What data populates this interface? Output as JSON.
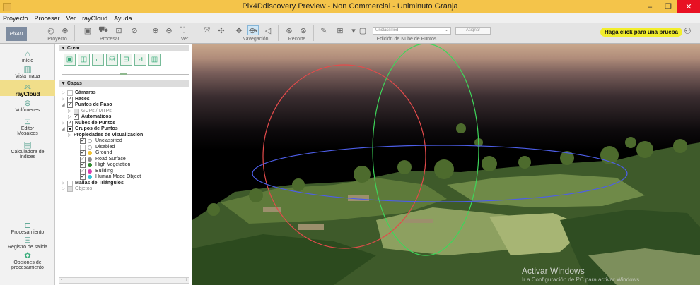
{
  "window": {
    "title": "Pix4Ddiscovery Preview - Non Commercial - Uniminuto Granja"
  },
  "menu": [
    "Proyecto",
    "Procesar",
    "Ver",
    "rayCloud",
    "Ayuda"
  ],
  "toolbar": {
    "logo_text": "Pix4D",
    "group_labels": {
      "proyecto": "Proyecto",
      "procesar": "Procesar",
      "ver": "Ver",
      "navegacion": "Navegación",
      "recorte": "Recorte",
      "edicion": "Edición de Nube de Puntos"
    },
    "class_dropdown": "Unclassified",
    "assign_label": "Asignar",
    "trial_button": "Haga click para una prueba"
  },
  "leftnav": [
    {
      "label": "Inicio",
      "icon": "home-icon"
    },
    {
      "label": "Vista mapa",
      "icon": "map-icon"
    },
    {
      "label": "rayCloud",
      "icon": "raycloud-icon",
      "active": true
    },
    {
      "label": "Volúmenes",
      "icon": "volume-icon"
    },
    {
      "label": "Editor Mosaicos",
      "icon": "mosaic-editor-icon"
    },
    {
      "label": "Calculadora de índices",
      "icon": "index-calculator-icon"
    },
    {
      "label": "Procesamiento",
      "icon": "processing-icon"
    },
    {
      "label": "Registro de salida",
      "icon": "output-log-icon"
    },
    {
      "label": "Opciones de procesamiento",
      "icon": "gear-icon"
    }
  ],
  "panel": {
    "crear_header": "Crear",
    "capas_header": "Capas",
    "layers": [
      {
        "label": "Cámaras",
        "checked": false,
        "bold": true,
        "level": 0,
        "expander": "▷"
      },
      {
        "label": "Haces",
        "checked": true,
        "bold": true,
        "level": 0,
        "expander": "▷"
      },
      {
        "label": "Puntos de Paso",
        "checked": true,
        "bold": true,
        "level": 0,
        "expander": "◢"
      },
      {
        "label": "GCPs / MTPs",
        "checked": false,
        "dim": true,
        "level": 1,
        "expander": "▷"
      },
      {
        "label": "Automaticos",
        "checked": true,
        "bold": true,
        "level": 1,
        "expander": "▷"
      },
      {
        "label": "Nubes de Puntos",
        "checked": true,
        "bold": true,
        "level": 0,
        "expander": "▷"
      },
      {
        "label": "Grupos de Puntos",
        "checked": "partial",
        "bold": true,
        "level": 0,
        "expander": "◢"
      },
      {
        "label": "Propiedades de Visualización",
        "bold": true,
        "level": 1,
        "expander": "▷",
        "no_checkbox": true
      },
      {
        "label": "Unclassified",
        "checked": true,
        "level": 2,
        "dot": "#ffffff"
      },
      {
        "label": "Disabled",
        "checked": false,
        "level": 2,
        "dot": "#ffffff"
      },
      {
        "label": "Ground",
        "checked": true,
        "level": 2,
        "dot": "#f2c230"
      },
      {
        "label": "Road Surface",
        "checked": true,
        "level": 2,
        "dot": "#8a8a8a"
      },
      {
        "label": "High Vegetation",
        "checked": true,
        "level": 2,
        "dot": "#2e8b2e"
      },
      {
        "label": "Building",
        "checked": true,
        "level": 2,
        "dot": "#d83fb0"
      },
      {
        "label": "Human Made Object",
        "checked": true,
        "level": 2,
        "dot": "#31c2d6"
      },
      {
        "label": "Mallas de Triángulos",
        "checked": false,
        "bold": true,
        "level": 0,
        "expander": "▷"
      },
      {
        "label": "Objetos",
        "checked": false,
        "dim": true,
        "level": 0,
        "expander": "▷"
      }
    ]
  },
  "viewport": {
    "activation_title": "Activar Windows",
    "activation_sub": "Ir a Configuración de PC para activar Windows."
  }
}
